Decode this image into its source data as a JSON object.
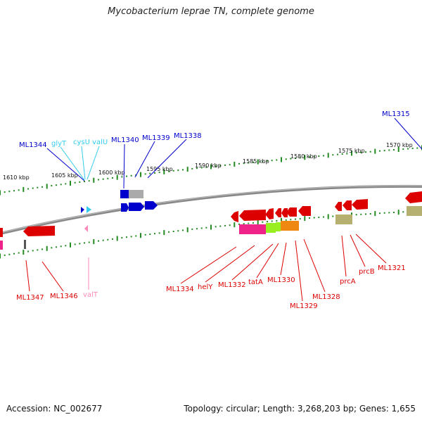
{
  "title": "Mycobacterium leprae TN, complete genome",
  "footer": {
    "accession": "Accession: NC_002677",
    "summary": "Topology: circular; Length: 3,268,203 bp; Genes: 1,655"
  },
  "scale_labels": [
    "1610 kbp",
    "1605 kbp",
    "1600 kbp",
    "1595 kbp",
    "1590 kbp",
    "1585 kbp",
    "1580 kbp",
    "1575 kbp",
    "1570 kbp"
  ],
  "gene_labels_top": [
    "ML1344",
    "glyT",
    "cysU",
    "valU",
    "ML1340",
    "ML1339",
    "ML1338",
    "ML1315"
  ],
  "gene_labels_bottom": [
    "ML1347",
    "ML1346",
    "valT",
    "ML1334",
    "helY",
    "ML1332",
    "tatA",
    "ML1330",
    "ML1329",
    "ML1328",
    "prcA",
    "prcB",
    "ML1321"
  ],
  "colors": {
    "forward_gene": "#0000cc",
    "reverse_gene": "#dd0000",
    "trna": "#33ccee",
    "trna_reverse": "#ff88bb",
    "backbone": "#888888",
    "tick": "#228b22"
  }
}
